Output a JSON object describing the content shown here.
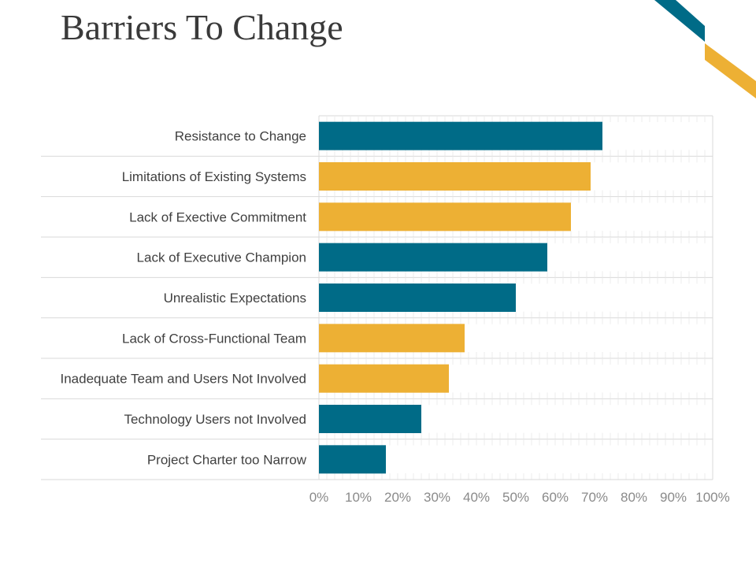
{
  "title": "Barriers To Change",
  "colors": {
    "teal": "#006b87",
    "gold": "#edb034",
    "grid": "#d9d9d9"
  },
  "chart_data": {
    "type": "bar",
    "orientation": "horizontal",
    "categories": [
      "Resistance to Change",
      "Limitations of Existing Systems",
      "Lack of Exective Commitment",
      "Lack of Executive Champion",
      "Unrealistic Expectations",
      "Lack of Cross-Functional Team",
      "Inadequate Team and Users Not Involved",
      "Technology Users not Involved",
      "Project Charter too Narrow"
    ],
    "values": [
      72,
      69,
      64,
      58,
      50,
      37,
      33,
      26,
      17
    ],
    "bar_colors": [
      "teal",
      "gold",
      "gold",
      "teal",
      "teal",
      "gold",
      "gold",
      "teal",
      "teal"
    ],
    "xlim": [
      0,
      100
    ],
    "x_ticks": [
      "0%",
      "10%",
      "20%",
      "30%",
      "40%",
      "50%",
      "60%",
      "70%",
      "80%",
      "90%",
      "100%"
    ],
    "grid": true
  }
}
